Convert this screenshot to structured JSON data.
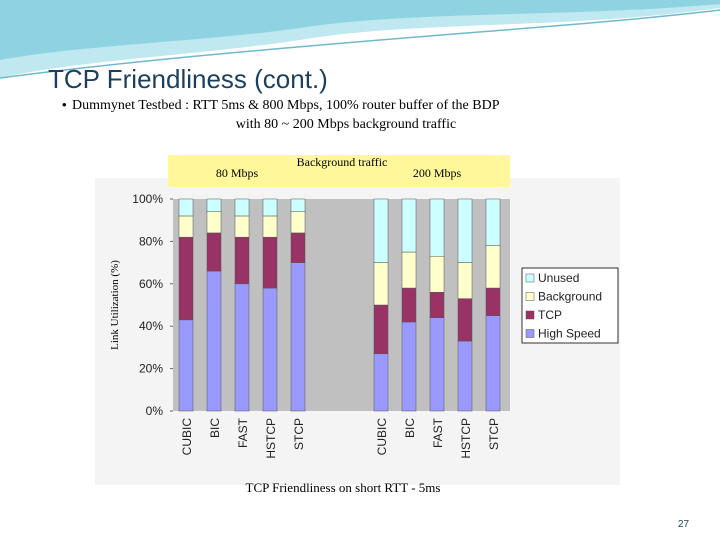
{
  "slide": {
    "title": "TCP Friendliness (cont.)",
    "bullet_line1": "Dummynet Testbed : RTT 5ms & 800 Mbps, 100% router buffer of the BDP",
    "bullet_line2": "with 80 ~ 200 Mbps background traffic",
    "page_number": "27"
  },
  "chart_data": {
    "type": "stacked-bar",
    "y_label": "Link Utilization (%)",
    "x_label": "TCP Friendliness on short RTT - 5ms",
    "annotations": [
      "80 Mbps",
      "Background traffic",
      "200 Mbps"
    ],
    "categories": [
      "CUBIC",
      "BIC",
      "FAST",
      "HSTCP",
      "STCP",
      null,
      "CUBIC",
      "BIC",
      "FAST",
      "HSTCP",
      "STCP"
    ],
    "series": [
      {
        "name": "High Speed",
        "color": "#9999ff",
        "values": [
          43,
          66,
          60,
          58,
          70,
          null,
          27,
          42,
          44,
          33,
          45
        ]
      },
      {
        "name": "TCP",
        "color": "#993366",
        "values": [
          39,
          18,
          22,
          24,
          14,
          null,
          23,
          16,
          12,
          20,
          13
        ]
      },
      {
        "name": "Background",
        "color": "#ffffcc",
        "values": [
          10,
          10,
          10,
          10,
          10,
          null,
          20,
          17,
          17,
          17,
          20
        ]
      },
      {
        "name": "Unused",
        "color": "#ccffff",
        "values": [
          8,
          6,
          8,
          8,
          6,
          null,
          30,
          25,
          27,
          30,
          22
        ]
      }
    ],
    "ylim": [
      0,
      100
    ],
    "yticks": [
      {
        "value": 0,
        "label": "0%"
      },
      {
        "value": 20,
        "label": "20%"
      },
      {
        "value": 40,
        "label": "40%"
      },
      {
        "value": 60,
        "label": "60%"
      },
      {
        "value": 80,
        "label": "80%"
      },
      {
        "value": 100,
        "label": "100%"
      }
    ],
    "legend": "right"
  }
}
